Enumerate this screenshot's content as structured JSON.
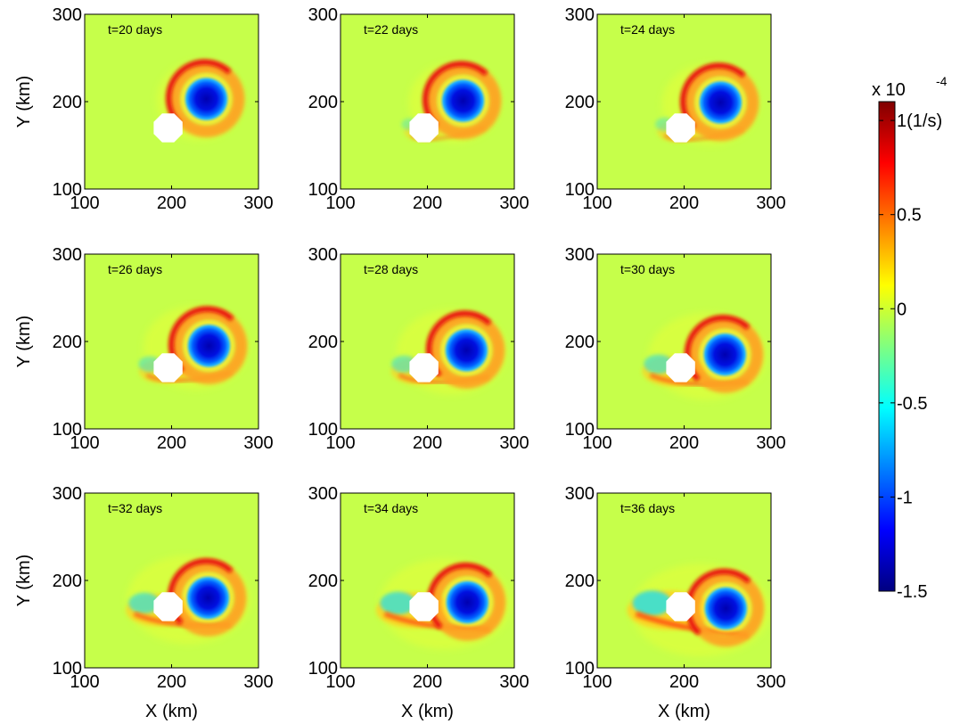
{
  "chart_data": {
    "type": "heatmap",
    "xlabel": "X (km)",
    "ylabel": "Y (km)",
    "xlim": [
      100,
      300
    ],
    "ylim": [
      100,
      300
    ],
    "xticks": [
      "100",
      "200",
      "300"
    ],
    "yticks": [
      "100",
      "200",
      "300"
    ],
    "colorbar": {
      "range": [
        -1.5,
        1.1
      ],
      "ticks": [
        {
          "value": 1,
          "label": "1(1/s)"
        },
        {
          "value": 0.5,
          "label": "0.5"
        },
        {
          "value": 0,
          "label": "0"
        },
        {
          "value": -0.5,
          "label": "-0.5"
        },
        {
          "value": -1,
          "label": "-1"
        },
        {
          "value": -1.5,
          "label": "-1.5"
        }
      ],
      "multiplier_base": "x 10",
      "multiplier_exponent": "-4",
      "colormap": "jet"
    },
    "panels": [
      {
        "label": "t=20 days",
        "eddy_x": 240,
        "eddy_y": 203,
        "wake": 0.0
      },
      {
        "label": "t=22 days",
        "eddy_x": 241,
        "eddy_y": 201,
        "wake": 0.1
      },
      {
        "label": "t=24 days",
        "eddy_x": 242,
        "eddy_y": 199,
        "wake": 0.2
      },
      {
        "label": "t=26 days",
        "eddy_x": 243,
        "eddy_y": 195,
        "wake": 0.35
      },
      {
        "label": "t=28 days",
        "eddy_x": 245,
        "eddy_y": 190,
        "wake": 0.45
      },
      {
        "label": "t=30 days",
        "eddy_x": 247,
        "eddy_y": 185,
        "wake": 0.6
      },
      {
        "label": "t=32 days",
        "eddy_x": 242,
        "eddy_y": 180,
        "wake": 0.7
      },
      {
        "label": "t=34 days",
        "eddy_x": 246,
        "eddy_y": 175,
        "wake": 0.85
      },
      {
        "label": "t=36 days",
        "eddy_x": 248,
        "eddy_y": 168,
        "wake": 1.0
      }
    ],
    "island": {
      "x": 196,
      "y": 170
    }
  }
}
